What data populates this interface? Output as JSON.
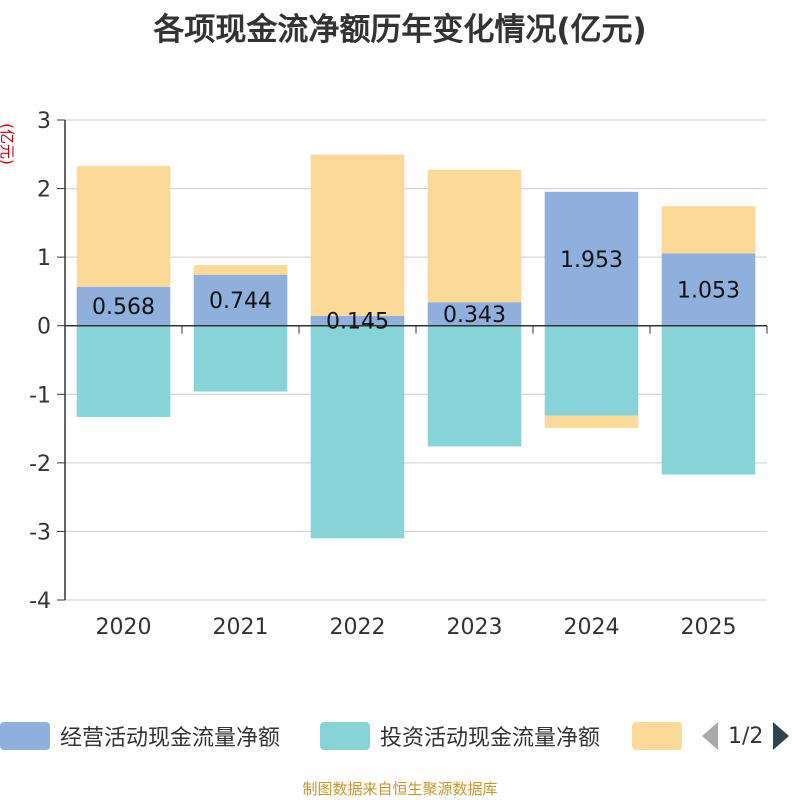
{
  "chart_data": {
    "type": "bar",
    "stacked": true,
    "title": "各项现金流净额历年变化情况(亿元)",
    "ylabel": "(亿元)",
    "xlabel": "",
    "categories": [
      "2020",
      "2021",
      "2022",
      "2023",
      "2024",
      "2025"
    ],
    "ylim": [
      -4,
      3
    ],
    "yticks": [
      3,
      2,
      1,
      0,
      -1,
      -2,
      -3,
      -4
    ],
    "series": [
      {
        "name": "经营活动现金流量净额",
        "color": "#8fb0dc",
        "values": [
          0.568,
          0.744,
          0.145,
          0.343,
          1.953,
          1.053
        ],
        "labels": [
          "0.568",
          "0.744",
          "0.145",
          "0.343",
          "1.953",
          "1.053"
        ]
      },
      {
        "name": "投资活动现金流量净额",
        "color": "#86d4d8",
        "values": [
          -1.33,
          -0.96,
          -3.1,
          -1.76,
          -1.31,
          -2.17
        ],
        "labels": []
      },
      {
        "name": "",
        "color": "#fdd998",
        "values": [
          1.76,
          0.14,
          2.35,
          1.93,
          -0.18,
          0.69
        ],
        "labels": []
      }
    ],
    "grid": true,
    "legend_position": "bottom"
  },
  "legend": {
    "page_indicator": "1/2"
  },
  "footer": {
    "source": "制图数据来自恒生聚源数据库"
  }
}
